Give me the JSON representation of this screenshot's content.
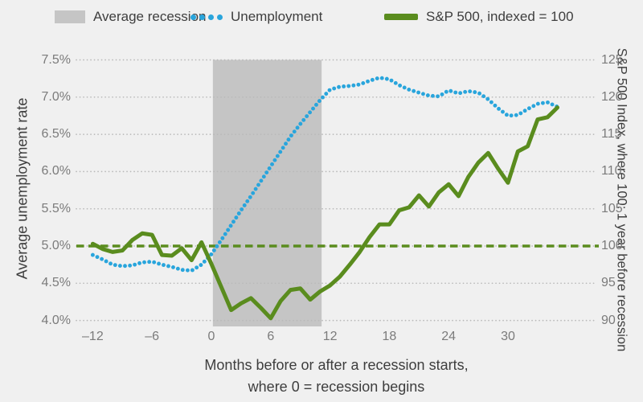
{
  "legend": {
    "recession": {
      "label": "Average recession"
    },
    "unemployment": {
      "label": "Unemployment"
    },
    "sp500": {
      "label": "S&P 500, indexed = 100"
    }
  },
  "left_axis": {
    "title": "Average unemployment rate",
    "ticks": [
      "7.5%",
      "7.0%",
      "6.5%",
      "6.0%",
      "5.5%",
      "5.0%",
      "4.5%",
      "4.0%"
    ],
    "tick_values": [
      7.5,
      7.0,
      6.5,
      6.0,
      5.5,
      5.0,
      4.5,
      4.0
    ]
  },
  "right_axis": {
    "title": "S&P 500 Index, where 100: 1 year before recession",
    "ticks": [
      "125",
      "120",
      "115",
      "110",
      "105",
      "100",
      "95",
      "90"
    ],
    "tick_values": [
      125,
      120,
      115,
      110,
      105,
      100,
      95,
      90
    ]
  },
  "x_axis": {
    "title_line1": "Months before or after a recession starts,",
    "title_line2": "where 0 = recession begins",
    "ticks": [
      "–12",
      "–6",
      "0",
      "6",
      "12",
      "18",
      "24",
      "30"
    ],
    "tick_values": [
      -12,
      -6,
      0,
      6,
      12,
      18,
      24,
      30
    ]
  },
  "chart_data": {
    "type": "line",
    "xlabel": "Months before or after a recession starts, where 0 = recession begins",
    "left_ylabel": "Average unemployment rate",
    "right_ylabel": "S&P 500 Index, where 100: 1 year before recession",
    "left_ylim": [
      4.0,
      7.5
    ],
    "right_ylim": [
      90,
      125
    ],
    "grid": "dotted horizontal",
    "legend_position": "top",
    "x_months": [
      -12,
      -11,
      -10,
      -9,
      -8,
      -7,
      -6,
      -5,
      -4,
      -3,
      -2,
      -1,
      0,
      1,
      2,
      3,
      4,
      5,
      6,
      7,
      8,
      9,
      10,
      11,
      12,
      13,
      14,
      15,
      16,
      17,
      18,
      19,
      20,
      21,
      22,
      23,
      24,
      25,
      26,
      27,
      28,
      29,
      30,
      31,
      32,
      33,
      34,
      35
    ],
    "series": [
      {
        "name": "Unemployment",
        "axis": "left",
        "unit": "%",
        "style": "dotted",
        "color": "#29a5dc",
        "values": [
          4.88,
          4.82,
          4.75,
          4.73,
          4.74,
          4.78,
          4.79,
          4.75,
          4.72,
          4.68,
          4.67,
          4.75,
          4.89,
          5.08,
          5.28,
          5.48,
          5.67,
          5.87,
          6.07,
          6.27,
          6.47,
          6.64,
          6.8,
          6.96,
          7.1,
          7.14,
          7.15,
          7.17,
          7.22,
          7.26,
          7.24,
          7.16,
          7.1,
          7.06,
          7.02,
          7.01,
          7.09,
          7.05,
          7.08,
          7.06,
          6.97,
          6.85,
          6.75,
          6.76,
          6.84,
          6.91,
          6.93,
          6.87
        ]
      },
      {
        "name": "S&P 500, indexed = 100",
        "axis": "right",
        "unit": "index",
        "style": "solid",
        "color": "#5a8c1e",
        "values": [
          100.3,
          99.6,
          99.2,
          99.4,
          100.8,
          101.7,
          101.5,
          98.8,
          98.7,
          99.7,
          98.1,
          100.5,
          97.6,
          94.5,
          91.4,
          92.3,
          93.0,
          91.7,
          90.3,
          92.6,
          94.1,
          94.3,
          92.8,
          93.9,
          94.7,
          95.9,
          97.5,
          99.2,
          101.2,
          102.9,
          102.9,
          104.8,
          105.2,
          106.8,
          105.3,
          107.2,
          108.3,
          106.7,
          109.3,
          111.2,
          112.5,
          110.4,
          108.5,
          112.7,
          113.4,
          117.0,
          117.3,
          118.6
        ]
      }
    ],
    "reference_line": {
      "axis": "right",
      "value": 100,
      "style": "dashed",
      "color": "#5a8c1e"
    },
    "recession_band": {
      "x_start": 0.15,
      "x_end": 11.15,
      "color": "#c5c5c5",
      "label": "Average recession"
    }
  },
  "colors": {
    "background": "#f0f0f0",
    "grid": "#b9b9b9",
    "tick_text": "#7b7b7b",
    "title_text": "#3e3e3e",
    "unemployment_blue": "#29a5dc",
    "sp500_green": "#5a8c1e",
    "band_gray": "#c5c5c5"
  }
}
